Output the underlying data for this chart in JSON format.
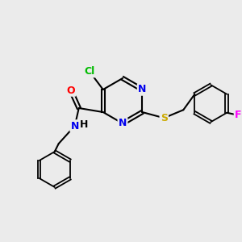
{
  "bg_color": "#ebebeb",
  "bond_color": "#000000",
  "atom_colors": {
    "N": "#0000ee",
    "O": "#ff0000",
    "S": "#ccaa00",
    "Cl": "#00bb00",
    "F": "#ff00ff",
    "C": "#000000",
    "H": "#000000"
  },
  "font_size": 9,
  "fig_size": [
    3.0,
    3.0
  ],
  "dpi": 100
}
